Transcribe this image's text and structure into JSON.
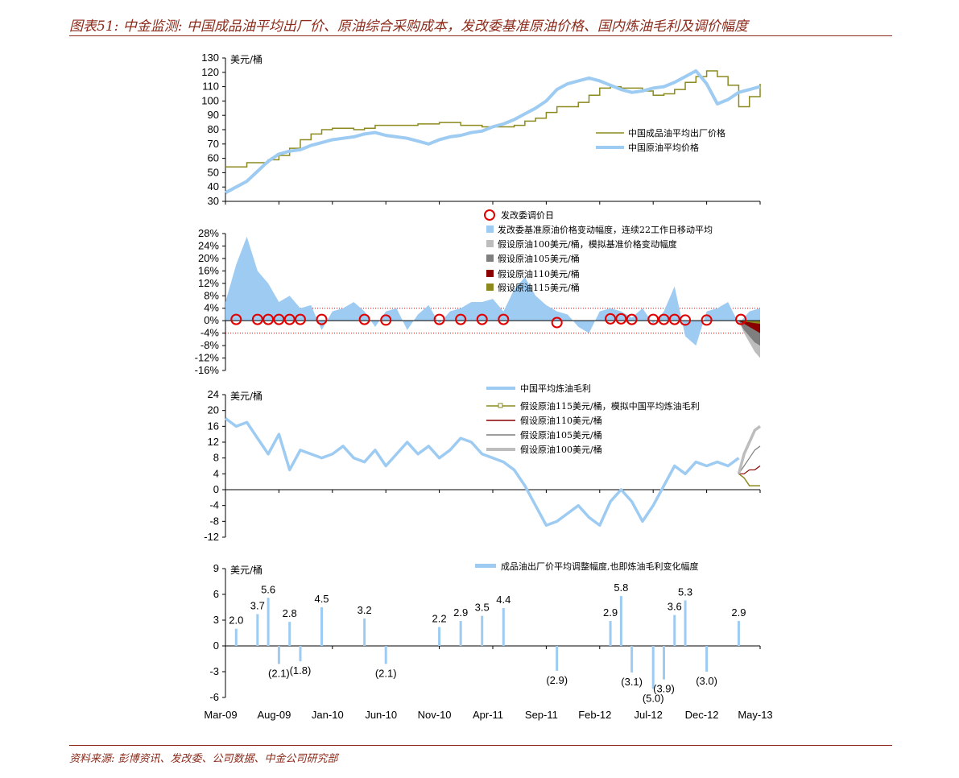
{
  "header": {
    "title": "图表51: 中金监测: 中国成品油平均出厂价、原油综合采购成本，发改委基准原油价格、国内炼油毛利及调价幅度"
  },
  "footer": {
    "source": "资料来源: 彭博资讯、发改委、公司数据、中金公司研究部"
  },
  "colors": {
    "light_blue": "#9DCBF2",
    "olive": "#8C8A1E",
    "dark_red": "#8B0000",
    "grey": "#BDBDBD",
    "dark_grey": "#7F7F7F",
    "marker_red": "#E00000"
  },
  "x_axis": {
    "ticks": [
      "Mar-09",
      "Aug-09",
      "Jan-10",
      "Jun-10",
      "Nov-10",
      "Apr-11",
      "Sep-11",
      "Feb-12",
      "Jul-12",
      "Dec-12",
      "May-13"
    ]
  },
  "chart_data": [
    {
      "type": "line",
      "ylabel": "美元/桶",
      "ylim": [
        30,
        130
      ],
      "yticks": [
        30,
        40,
        50,
        60,
        70,
        80,
        90,
        100,
        110,
        120,
        130
      ],
      "x_range": [
        "2009-03",
        "2013-05"
      ],
      "series": [
        {
          "name": "中国成品油平均出厂价格",
          "color": "#8C8A1E",
          "style": "step",
          "x": [
            0,
            2,
            4,
            5,
            6,
            7,
            8,
            9,
            10,
            12,
            13,
            14,
            16,
            18,
            20,
            22,
            24,
            26,
            27,
            28,
            29,
            30,
            31,
            33,
            34,
            35,
            36,
            37,
            38,
            39,
            40,
            41,
            42,
            43,
            44,
            45,
            46,
            47,
            48,
            49,
            50
          ],
          "y": [
            54,
            57,
            59,
            62,
            67,
            73,
            77,
            80,
            81,
            80,
            81,
            83,
            83,
            84,
            85,
            83,
            82,
            82,
            83,
            86,
            88,
            92,
            96,
            99,
            104,
            109,
            110,
            109,
            109,
            107,
            104,
            105,
            108,
            113,
            117,
            121,
            117,
            111,
            96,
            103,
            112
          ]
        },
        {
          "name": "中国原油平均价格",
          "color": "#9DCBF2",
          "style": "line",
          "x": [
            0,
            1,
            2,
            3,
            4,
            5,
            6,
            7,
            8,
            9,
            10,
            11,
            12,
            13,
            14,
            15,
            16,
            17,
            18,
            19,
            20,
            21,
            22,
            23,
            24,
            25,
            26,
            27,
            28,
            29,
            30,
            31,
            32,
            33,
            34,
            35,
            36,
            37,
            38,
            39,
            40,
            41,
            42,
            43,
            44,
            45,
            46,
            47,
            48,
            49,
            50
          ],
          "y": [
            36,
            40,
            44,
            51,
            58,
            63,
            65,
            66,
            69,
            71,
            73,
            74,
            75,
            77,
            78,
            76,
            75,
            74,
            72,
            70,
            73,
            75,
            76,
            78,
            79,
            82,
            84,
            87,
            91,
            95,
            100,
            108,
            112,
            114,
            116,
            114,
            111,
            108,
            106,
            107,
            109,
            110,
            113,
            117,
            121,
            112,
            98,
            101,
            106,
            108,
            110
          ]
        }
      ]
    },
    {
      "type": "area",
      "ylim": [
        -16,
        28
      ],
      "yticks": [
        "-16%",
        "-12%",
        "-8%",
        "-4%",
        "0%",
        "4%",
        "8%",
        "12%",
        "16%",
        "20%",
        "24%",
        "28%"
      ],
      "reference_lines": [
        4,
        -4
      ],
      "series": [
        {
          "name": "发改委基准原油价格变动幅度，连续22工作日移动平均",
          "color": "#9DCBF2",
          "x": [
            0,
            1,
            2,
            3,
            4,
            5,
            6,
            7,
            8,
            9,
            10,
            11,
            12,
            13,
            14,
            15,
            16,
            17,
            18,
            19,
            20,
            21,
            22,
            23,
            24,
            25,
            26,
            27,
            28,
            29,
            30,
            31,
            32,
            33,
            34,
            35,
            36,
            37,
            38,
            39,
            40,
            41,
            42,
            43,
            44,
            45,
            46,
            47,
            48,
            49,
            50
          ],
          "y": [
            6,
            18,
            27,
            16,
            12,
            6,
            8,
            4,
            5,
            -3,
            3,
            4,
            6,
            3,
            -2,
            3,
            4,
            -3,
            2,
            5,
            -1,
            3,
            4,
            6,
            6,
            7,
            3,
            10,
            14,
            8,
            5,
            3,
            2,
            -2,
            -4,
            3,
            4,
            3,
            1,
            4,
            -1,
            3,
            11,
            -5,
            -8,
            3,
            4,
            6,
            -1,
            3,
            4
          ]
        },
        {
          "name": "假设原油100美元/桶，模拟基准价格变动幅度",
          "color": "#BDBDBD",
          "x": [
            48,
            48.5,
            49,
            49.5,
            50
          ],
          "y": [
            0,
            -4,
            -7,
            -10,
            -12
          ]
        },
        {
          "name": "假设原油105美元/桶",
          "color": "#7F7F7F",
          "x": [
            48,
            48.5,
            49,
            49.5,
            50
          ],
          "y": [
            0,
            -3,
            -5,
            -7,
            -8
          ]
        },
        {
          "name": "假设原油110美元/桶",
          "color": "#8B0000",
          "x": [
            48,
            48.5,
            49,
            49.5,
            50
          ],
          "y": [
            0,
            -1,
            -2,
            -3,
            -4
          ]
        },
        {
          "name": "假设原油115美元/桶",
          "color": "#8C8A1E",
          "x": [
            48,
            48.5,
            49,
            49.5,
            50
          ],
          "y": [
            0,
            -0.3,
            -0.5,
            -0.8,
            -1
          ]
        }
      ],
      "markers": {
        "name": "发改委调价日",
        "color": "#E00000",
        "x": [
          1,
          3,
          4,
          5,
          6,
          7,
          9,
          13,
          15,
          20,
          22,
          24,
          26,
          31,
          36,
          37,
          38,
          40,
          41,
          42,
          43,
          45,
          48.2
        ],
        "y": [
          0.4,
          0.4,
          0.4,
          0.4,
          0.4,
          0.4,
          0.4,
          0.4,
          0.2,
          0.4,
          0.4,
          0.4,
          0.4,
          -0.6,
          0.6,
          0.6,
          0.4,
          0.4,
          0.4,
          0.4,
          0.2,
          0.2,
          0.4
        ]
      }
    },
    {
      "type": "line",
      "ylabel": "美元/桶",
      "ylim": [
        -12,
        24
      ],
      "yticks": [
        -12,
        -8,
        -4,
        0,
        4,
        8,
        12,
        16,
        20,
        24
      ],
      "series": [
        {
          "name": "中国平均炼油毛利",
          "color": "#9DCBF2",
          "x": [
            0,
            1,
            2,
            3,
            4,
            5,
            6,
            7,
            8,
            9,
            10,
            11,
            12,
            13,
            14,
            15,
            16,
            17,
            18,
            19,
            20,
            21,
            22,
            23,
            24,
            25,
            26,
            27,
            28,
            29,
            30,
            31,
            32,
            33,
            34,
            35,
            36,
            37,
            38,
            39,
            40,
            41,
            42,
            43,
            44,
            45,
            46,
            47,
            48
          ],
          "y": [
            18,
            16,
            17,
            13,
            9,
            14,
            5,
            10,
            9,
            8,
            9,
            11,
            8,
            7,
            10,
            6,
            9,
            12,
            9,
            11,
            8,
            10,
            13,
            12,
            9,
            8,
            7,
            5,
            1,
            -4,
            -9,
            -8,
            -6,
            -4,
            -7,
            -9,
            -3,
            0,
            -3,
            -8,
            -4,
            1,
            6,
            4,
            7,
            6,
            7,
            6,
            8
          ]
        },
        {
          "name": "假设原油115美元/桶，模拟中国平均炼油毛利",
          "color": "#8C8A1E",
          "x": [
            48,
            48.5,
            49,
            49.5,
            50
          ],
          "y": [
            4,
            3,
            1,
            1,
            1
          ]
        },
        {
          "name": "假设原油110美元/桶",
          "color": "#8B0000",
          "x": [
            48,
            48.5,
            49,
            49.5,
            50
          ],
          "y": [
            4,
            4,
            5,
            5,
            6
          ]
        },
        {
          "name": "假设原油105美元/桶",
          "color": "#7F7F7F",
          "x": [
            48,
            48.5,
            49,
            49.5,
            50
          ],
          "y": [
            4,
            6,
            8,
            10,
            11
          ]
        },
        {
          "name": "假设原油100美元/桶",
          "color": "#BDBDBD",
          "x": [
            48,
            48.5,
            49,
            49.5,
            50
          ],
          "y": [
            4,
            9,
            12,
            15,
            16
          ]
        }
      ]
    },
    {
      "type": "bar",
      "ylabel": "美元/桶",
      "ylim": [
        -6,
        9
      ],
      "yticks": [
        -6,
        -3,
        0,
        3,
        6,
        9
      ],
      "series": [
        {
          "name": "成品油出厂价平均调整幅度,也即炼油毛利变化幅度",
          "color": "#9DCBF2",
          "x": [
            1,
            3,
            4,
            5,
            6,
            7,
            9,
            13,
            15,
            20,
            22,
            24,
            26,
            31,
            36,
            37,
            38,
            40,
            41,
            42,
            43,
            45,
            48
          ],
          "values": [
            2.0,
            3.7,
            5.6,
            -2.1,
            2.8,
            -1.8,
            4.5,
            3.2,
            -2.1,
            2.2,
            2.9,
            3.5,
            4.4,
            -2.9,
            2.9,
            5.8,
            -3.1,
            -5.0,
            -3.9,
            3.6,
            5.3,
            -3.0,
            2.9
          ],
          "labels": [
            "2.0",
            "3.7",
            "5.6",
            "(2.1)",
            "2.8",
            "(1.8)",
            "4.5",
            "3.2",
            "(2.1)",
            "2.2",
            "2.9",
            "3.5",
            "4.4",
            "(2.9)",
            "2.9",
            "5.8",
            "(3.1)",
            "(5.0)",
            "(3.9)",
            "3.6",
            "5.3",
            "(3.0)",
            "2.9"
          ]
        }
      ]
    }
  ]
}
